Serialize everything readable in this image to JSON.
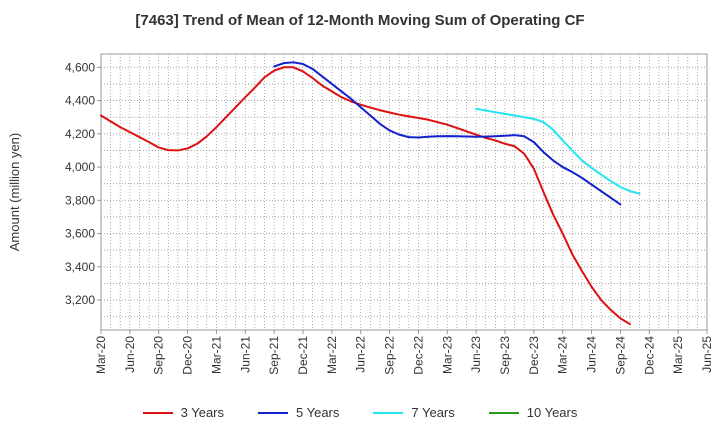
{
  "chart_data": {
    "type": "line",
    "title": "[7463]  Trend of Mean of 12-Month Moving Sum of Operating CF",
    "xlabel": "",
    "ylabel": "Amount (million yen)",
    "ylim": [
      3020,
      4680
    ],
    "yticks": [
      3200,
      3400,
      3600,
      3800,
      4000,
      4200,
      4400,
      4600
    ],
    "ytick_labels": [
      "3,200",
      "3,400",
      "3,600",
      "3,800",
      "4,000",
      "4,200",
      "4,400",
      "4,600"
    ],
    "x_categories": [
      "Mar-20",
      "Jun-20",
      "Sep-20",
      "Dec-20",
      "Mar-21",
      "Jun-21",
      "Sep-21",
      "Dec-21",
      "Mar-22",
      "Jun-22",
      "Sep-22",
      "Dec-22",
      "Mar-23",
      "Jun-23",
      "Sep-23",
      "Dec-23",
      "Mar-24",
      "Jun-24",
      "Sep-24",
      "Dec-24",
      "Mar-25",
      "Jun-25"
    ],
    "grid": true,
    "legend_position": "bottom",
    "series": [
      {
        "name": "3 Years",
        "color": "#dd1111",
        "start_index": 0,
        "values": [
          4310,
          4275,
          4240,
          4210,
          4180,
          4150,
          4118,
          4102,
          4100,
          4112,
          4140,
          4185,
          4240,
          4300,
          4360,
          4420,
          4478,
          4540,
          4580,
          4600,
          4600,
          4575,
          4535,
          4490,
          4455,
          4420,
          4395,
          4375,
          4358,
          4342,
          4328,
          4315,
          4305,
          4295,
          4285,
          4270,
          4255,
          4235,
          4215,
          4195,
          4175,
          4160,
          4140,
          4125,
          4080,
          3990,
          3850,
          3715,
          3600,
          3475,
          3375,
          3280,
          3200,
          3140,
          3090,
          3055
        ]
      },
      {
        "name": "5 Years",
        "color": "#1122cc",
        "start_index": 18,
        "values": [
          4605,
          4625,
          4630,
          4620,
          4590,
          4545,
          4500,
          4455,
          4410,
          4360,
          4310,
          4260,
          4220,
          4195,
          4180,
          4178,
          4182,
          4185,
          4186,
          4185,
          4184,
          4182,
          4183,
          4185,
          4188,
          4192,
          4185,
          4150,
          4090,
          4040,
          4000,
          3970,
          3935,
          3895,
          3855,
          3815,
          3775
        ]
      },
      {
        "name": "7 Years",
        "color": "#22e5f0",
        "start_index": 39,
        "values": [
          4350,
          4340,
          4330,
          4320,
          4310,
          4300,
          4290,
          4270,
          4225,
          4160,
          4100,
          4040,
          3995,
          3955,
          3915,
          3880,
          3855,
          3840
        ]
      },
      {
        "name": "10 Years",
        "color": "#229922",
        "start_index": 0,
        "values": []
      }
    ]
  }
}
